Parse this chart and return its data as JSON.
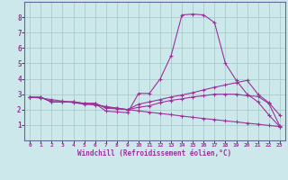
{
  "background_color": "#cce8ea",
  "grid_color": "#aacccc",
  "line_color": "#993399",
  "spine_color": "#666699",
  "xlim": [
    -0.5,
    23.5
  ],
  "ylim": [
    0,
    9
  ],
  "xlabel": "Windchill (Refroidissement éolien,°C)",
  "xlabel_fontsize": 5.5,
  "xtick_labels": [
    "0",
    "1",
    "2",
    "3",
    "4",
    "5",
    "6",
    "7",
    "8",
    "9",
    "10",
    "11",
    "12",
    "13",
    "14",
    "15",
    "16",
    "17",
    "18",
    "19",
    "20",
    "21",
    "22",
    "23"
  ],
  "xtick_vals": [
    0,
    1,
    2,
    3,
    4,
    5,
    6,
    7,
    8,
    9,
    10,
    11,
    12,
    13,
    14,
    15,
    16,
    17,
    18,
    19,
    20,
    21,
    22,
    23
  ],
  "ytick_vals": [
    1,
    2,
    3,
    4,
    5,
    6,
    7,
    8
  ],
  "series": [
    {
      "x": [
        0,
        1,
        2,
        3,
        4,
        5,
        6,
        7,
        8,
        9,
        10,
        11,
        12,
        13,
        14,
        15,
        16,
        17,
        18,
        19,
        20,
        21,
        22,
        23
      ],
      "y": [
        2.8,
        2.8,
        2.5,
        2.5,
        2.5,
        2.4,
        2.4,
        1.9,
        1.85,
        1.8,
        3.05,
        3.05,
        4.0,
        5.5,
        8.15,
        8.2,
        8.15,
        7.65,
        5.0,
        3.9,
        3.0,
        2.5,
        1.65,
        0.9
      ]
    },
    {
      "x": [
        0,
        1,
        2,
        3,
        4,
        5,
        6,
        7,
        8,
        9,
        10,
        11,
        12,
        13,
        14,
        15,
        16,
        17,
        18,
        19,
        20,
        21,
        22,
        23
      ],
      "y": [
        2.8,
        2.8,
        2.5,
        2.5,
        2.5,
        2.4,
        2.4,
        2.15,
        2.1,
        2.0,
        2.35,
        2.5,
        2.65,
        2.82,
        2.95,
        3.1,
        3.28,
        3.45,
        3.6,
        3.75,
        3.9,
        3.0,
        2.45,
        1.65
      ]
    },
    {
      "x": [
        0,
        1,
        2,
        3,
        4,
        5,
        6,
        7,
        8,
        9,
        10,
        11,
        12,
        13,
        14,
        15,
        16,
        17,
        18,
        19,
        20,
        21,
        22,
        23
      ],
      "y": [
        2.8,
        2.8,
        2.5,
        2.5,
        2.5,
        2.4,
        2.4,
        2.1,
        2.05,
        2.0,
        2.15,
        2.25,
        2.45,
        2.6,
        2.7,
        2.82,
        2.9,
        3.0,
        3.0,
        3.0,
        2.9,
        2.85,
        2.4,
        0.95
      ]
    },
    {
      "x": [
        0,
        1,
        2,
        3,
        4,
        5,
        6,
        7,
        8,
        9,
        10,
        11,
        12,
        13,
        14,
        15,
        16,
        17,
        18,
        19,
        20,
        21,
        22,
        23
      ],
      "y": [
        2.8,
        2.75,
        2.65,
        2.55,
        2.45,
        2.35,
        2.3,
        2.2,
        2.1,
        2.0,
        1.92,
        1.83,
        1.75,
        1.67,
        1.58,
        1.5,
        1.42,
        1.35,
        1.27,
        1.2,
        1.12,
        1.05,
        0.97,
        0.9
      ]
    }
  ]
}
